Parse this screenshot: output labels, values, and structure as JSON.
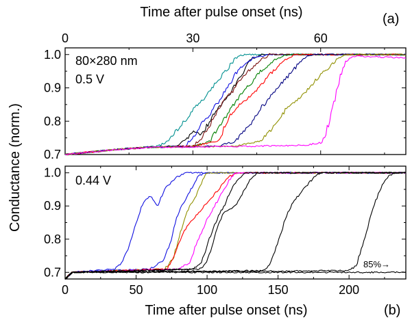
{
  "figure": {
    "top_axis_label": "Time after pulse onset (ns)",
    "bottom_axis_label": "Time after pulse onset (ns)",
    "y_axis_label": "Conductance (norm.)",
    "panel_a_tag": "(a)",
    "panel_b_tag": "(b)"
  },
  "chart_data": [
    {
      "type": "line",
      "panel": "(a)",
      "annotations": [
        "80×280 nm",
        "0.5 V"
      ],
      "xlabel": "Time after pulse onset (ns)",
      "xlim": [
        0,
        80
      ],
      "xticks": [
        0,
        30,
        60
      ],
      "ylabel": "Conductance (norm.)",
      "ylim": [
        0.7,
        1.02
      ],
      "yticks": [
        0.7,
        0.8,
        0.9,
        1.0
      ],
      "yticklabels": [
        "0.7",
        "0.8",
        "0.9",
        "1.0"
      ],
      "x_axis_position": "top",
      "series": [
        {
          "color": "#009090",
          "points": [
            [
              0,
              0.7
            ],
            [
              12,
              0.715
            ],
            [
              18,
              0.722
            ],
            [
              22,
              0.725
            ],
            [
              24,
              0.74
            ],
            [
              26,
              0.77
            ],
            [
              28,
              0.8
            ],
            [
              30,
              0.835
            ],
            [
              32,
              0.86
            ],
            [
              34,
              0.89
            ],
            [
              36,
              0.925
            ],
            [
              38,
              0.955
            ],
            [
              40,
              0.99
            ],
            [
              42,
              1.0
            ],
            [
              80,
              1.0
            ]
          ]
        },
        {
          "color": "#000000",
          "points": [
            [
              0,
              0.7
            ],
            [
              12,
              0.715
            ],
            [
              20,
              0.722
            ],
            [
              26,
              0.725
            ],
            [
              28,
              0.74
            ],
            [
              30,
              0.77
            ],
            [
              32,
              0.76
            ],
            [
              34,
              0.8
            ],
            [
              36,
              0.84
            ],
            [
              38,
              0.87
            ],
            [
              40,
              0.91
            ],
            [
              42,
              0.95
            ],
            [
              44,
              0.99
            ],
            [
              46,
              1.0
            ],
            [
              80,
              1.0
            ]
          ]
        },
        {
          "color": "#1010e0",
          "points": [
            [
              0,
              0.7
            ],
            [
              12,
              0.715
            ],
            [
              20,
              0.722
            ],
            [
              28,
              0.725
            ],
            [
              30,
              0.75
            ],
            [
              32,
              0.79
            ],
            [
              34,
              0.82
            ],
            [
              36,
              0.86
            ],
            [
              38,
              0.9
            ],
            [
              40,
              0.94
            ],
            [
              42,
              0.97
            ],
            [
              44,
              0.99
            ],
            [
              48,
              1.0
            ],
            [
              80,
              1.0
            ]
          ]
        },
        {
          "color": "#7a1010",
          "points": [
            [
              0,
              0.7
            ],
            [
              12,
              0.715
            ],
            [
              20,
              0.722
            ],
            [
              30,
              0.725
            ],
            [
              32,
              0.75
            ],
            [
              34,
              0.79
            ],
            [
              36,
              0.84
            ],
            [
              38,
              0.87
            ],
            [
              40,
              0.9
            ],
            [
              42,
              0.94
            ],
            [
              44,
              0.96
            ],
            [
              46,
              0.985
            ],
            [
              48,
              1.0
            ],
            [
              80,
              1.0
            ]
          ]
        },
        {
          "color": "#008000",
          "points": [
            [
              0,
              0.7
            ],
            [
              12,
              0.715
            ],
            [
              20,
              0.722
            ],
            [
              30,
              0.724
            ],
            [
              34,
              0.74
            ],
            [
              36,
              0.78
            ],
            [
              38,
              0.82
            ],
            [
              40,
              0.86
            ],
            [
              42,
              0.89
            ],
            [
              44,
              0.92
            ],
            [
              46,
              0.95
            ],
            [
              48,
              0.97
            ],
            [
              50,
              0.99
            ],
            [
              52,
              1.0
            ],
            [
              80,
              1.0
            ]
          ]
        },
        {
          "color": "#ff0000",
          "points": [
            [
              0,
              0.7
            ],
            [
              12,
              0.715
            ],
            [
              20,
              0.722
            ],
            [
              30,
              0.725
            ],
            [
              36,
              0.74
            ],
            [
              38,
              0.8
            ],
            [
              40,
              0.84
            ],
            [
              42,
              0.86
            ],
            [
              44,
              0.88
            ],
            [
              46,
              0.91
            ],
            [
              48,
              0.94
            ],
            [
              50,
              0.965
            ],
            [
              52,
              0.985
            ],
            [
              54,
              1.0
            ],
            [
              80,
              1.0
            ]
          ]
        },
        {
          "color": "#000080",
          "points": [
            [
              0,
              0.7
            ],
            [
              12,
              0.715
            ],
            [
              20,
              0.722
            ],
            [
              36,
              0.725
            ],
            [
              40,
              0.74
            ],
            [
              42,
              0.77
            ],
            [
              44,
              0.8
            ],
            [
              46,
              0.84
            ],
            [
              48,
              0.87
            ],
            [
              50,
              0.9
            ],
            [
              52,
              0.93
            ],
            [
              54,
              0.96
            ],
            [
              56,
              0.99
            ],
            [
              58,
              1.0
            ],
            [
              80,
              1.0
            ]
          ]
        },
        {
          "color": "#909000",
          "points": [
            [
              0,
              0.7
            ],
            [
              12,
              0.715
            ],
            [
              20,
              0.722
            ],
            [
              40,
              0.725
            ],
            [
              46,
              0.74
            ],
            [
              48,
              0.77
            ],
            [
              50,
              0.8
            ],
            [
              52,
              0.84
            ],
            [
              54,
              0.86
            ],
            [
              56,
              0.88
            ],
            [
              58,
              0.91
            ],
            [
              60,
              0.94
            ],
            [
              62,
              0.96
            ],
            [
              64,
              0.99
            ],
            [
              66,
              1.0
            ],
            [
              80,
              1.0
            ]
          ]
        },
        {
          "color": "#ff00ff",
          "points": [
            [
              0,
              0.7
            ],
            [
              12,
              0.715
            ],
            [
              20,
              0.722
            ],
            [
              40,
              0.724
            ],
            [
              56,
              0.728
            ],
            [
              60,
              0.735
            ],
            [
              61,
              0.75
            ],
            [
              62,
              0.8
            ],
            [
              63,
              0.85
            ],
            [
              64,
              0.9
            ],
            [
              65,
              0.95
            ],
            [
              66,
              0.98
            ],
            [
              68,
              0.995
            ],
            [
              80,
              0.99
            ]
          ]
        }
      ]
    },
    {
      "type": "line",
      "panel": "(b)",
      "annotations": [
        "0.44 V",
        "85%→"
      ],
      "xlabel": "Time after pulse onset (ns)",
      "xlim": [
        0,
        240
      ],
      "xticks": [
        0,
        50,
        100,
        150,
        200
      ],
      "ylabel": "Conductance (norm.)",
      "ylim": [
        0.68,
        1.02
      ],
      "yticks": [
        0.7,
        0.8,
        0.9,
        1.0
      ],
      "yticklabels": [
        "0.7",
        "0.8",
        "0.9",
        "1.0"
      ],
      "x_axis_position": "bottom",
      "series": [
        {
          "color": "#1010e0",
          "points": [
            [
              0,
              0.68
            ],
            [
              5,
              0.7
            ],
            [
              35,
              0.71
            ],
            [
              40,
              0.73
            ],
            [
              45,
              0.78
            ],
            [
              50,
              0.85
            ],
            [
              55,
              0.91
            ],
            [
              60,
              0.93
            ],
            [
              65,
              0.9
            ],
            [
              70,
              0.95
            ],
            [
              78,
              0.985
            ],
            [
              85,
              1.0
            ],
            [
              240,
              1.0
            ]
          ]
        },
        {
          "color": "#1010e0",
          "points": [
            [
              0,
              0.68
            ],
            [
              5,
              0.7
            ],
            [
              60,
              0.71
            ],
            [
              70,
              0.74
            ],
            [
              75,
              0.8
            ],
            [
              78,
              0.86
            ],
            [
              82,
              0.9
            ],
            [
              86,
              0.93
            ],
            [
              90,
              0.96
            ],
            [
              94,
              0.99
            ],
            [
              98,
              1.0
            ],
            [
              240,
              1.0
            ]
          ]
        },
        {
          "color": "#909000",
          "points": [
            [
              0,
              0.68
            ],
            [
              5,
              0.7
            ],
            [
              70,
              0.71
            ],
            [
              76,
              0.74
            ],
            [
              80,
              0.8
            ],
            [
              84,
              0.86
            ],
            [
              88,
              0.9
            ],
            [
              92,
              0.93
            ],
            [
              96,
              0.97
            ],
            [
              100,
              1.0
            ],
            [
              240,
              1.0
            ]
          ]
        },
        {
          "color": "#ff0000",
          "points": [
            [
              0,
              0.68
            ],
            [
              5,
              0.7
            ],
            [
              72,
              0.71
            ],
            [
              78,
              0.76
            ],
            [
              82,
              0.81
            ],
            [
              86,
              0.84
            ],
            [
              90,
              0.86
            ],
            [
              94,
              0.88
            ],
            [
              98,
              0.9
            ],
            [
              102,
              0.92
            ],
            [
              106,
              0.94
            ],
            [
              110,
              0.96
            ],
            [
              116,
              0.99
            ],
            [
              122,
              1.0
            ],
            [
              240,
              1.0
            ]
          ]
        },
        {
          "color": "#ff00ff",
          "points": [
            [
              0,
              0.68
            ],
            [
              5,
              0.7
            ],
            [
              80,
              0.71
            ],
            [
              88,
              0.73
            ],
            [
              92,
              0.78
            ],
            [
              96,
              0.82
            ],
            [
              100,
              0.86
            ],
            [
              104,
              0.89
            ],
            [
              108,
              0.92
            ],
            [
              112,
              0.95
            ],
            [
              116,
              0.98
            ],
            [
              120,
              1.0
            ],
            [
              240,
              1.0
            ]
          ]
        },
        {
          "color": "#000000",
          "points": [
            [
              0,
              0.68
            ],
            [
              5,
              0.7
            ],
            [
              90,
              0.71
            ],
            [
              96,
              0.73
            ],
            [
              100,
              0.78
            ],
            [
              104,
              0.83
            ],
            [
              108,
              0.87
            ],
            [
              112,
              0.9
            ],
            [
              116,
              0.94
            ],
            [
              120,
              0.97
            ],
            [
              124,
              0.99
            ],
            [
              128,
              1.0
            ],
            [
              240,
              1.0
            ]
          ]
        },
        {
          "color": "#000000",
          "points": [
            [
              0,
              0.68
            ],
            [
              5,
              0.7
            ],
            [
              95,
              0.71
            ],
            [
              100,
              0.73
            ],
            [
              104,
              0.79
            ],
            [
              108,
              0.85
            ],
            [
              112,
              0.88
            ],
            [
              116,
              0.89
            ],
            [
              120,
              0.9
            ],
            [
              124,
              0.93
            ],
            [
              128,
              0.96
            ],
            [
              132,
              0.99
            ],
            [
              136,
              1.0
            ],
            [
              240,
              1.0
            ]
          ]
        },
        {
          "color": "#000000",
          "points": [
            [
              0,
              0.68
            ],
            [
              5,
              0.7
            ],
            [
              140,
              0.705
            ],
            [
              145,
              0.73
            ],
            [
              148,
              0.77
            ],
            [
              152,
              0.82
            ],
            [
              156,
              0.87
            ],
            [
              160,
              0.91
            ],
            [
              164,
              0.93
            ],
            [
              168,
              0.95
            ],
            [
              172,
              0.97
            ],
            [
              176,
              0.99
            ],
            [
              180,
              1.0
            ],
            [
              240,
              1.0
            ]
          ]
        },
        {
          "color": "#000000",
          "points": [
            [
              0,
              0.68
            ],
            [
              5,
              0.7
            ],
            [
              200,
              0.705
            ],
            [
              205,
              0.72
            ],
            [
              208,
              0.76
            ],
            [
              212,
              0.82
            ],
            [
              216,
              0.88
            ],
            [
              220,
              0.93
            ],
            [
              224,
              0.97
            ],
            [
              228,
              0.99
            ],
            [
              232,
              1.0
            ],
            [
              240,
              1.0
            ]
          ]
        },
        {
          "color": "#000000",
          "points": [
            [
              0,
              0.68
            ],
            [
              5,
              0.7
            ],
            [
              240,
              0.7
            ]
          ]
        }
      ]
    }
  ]
}
